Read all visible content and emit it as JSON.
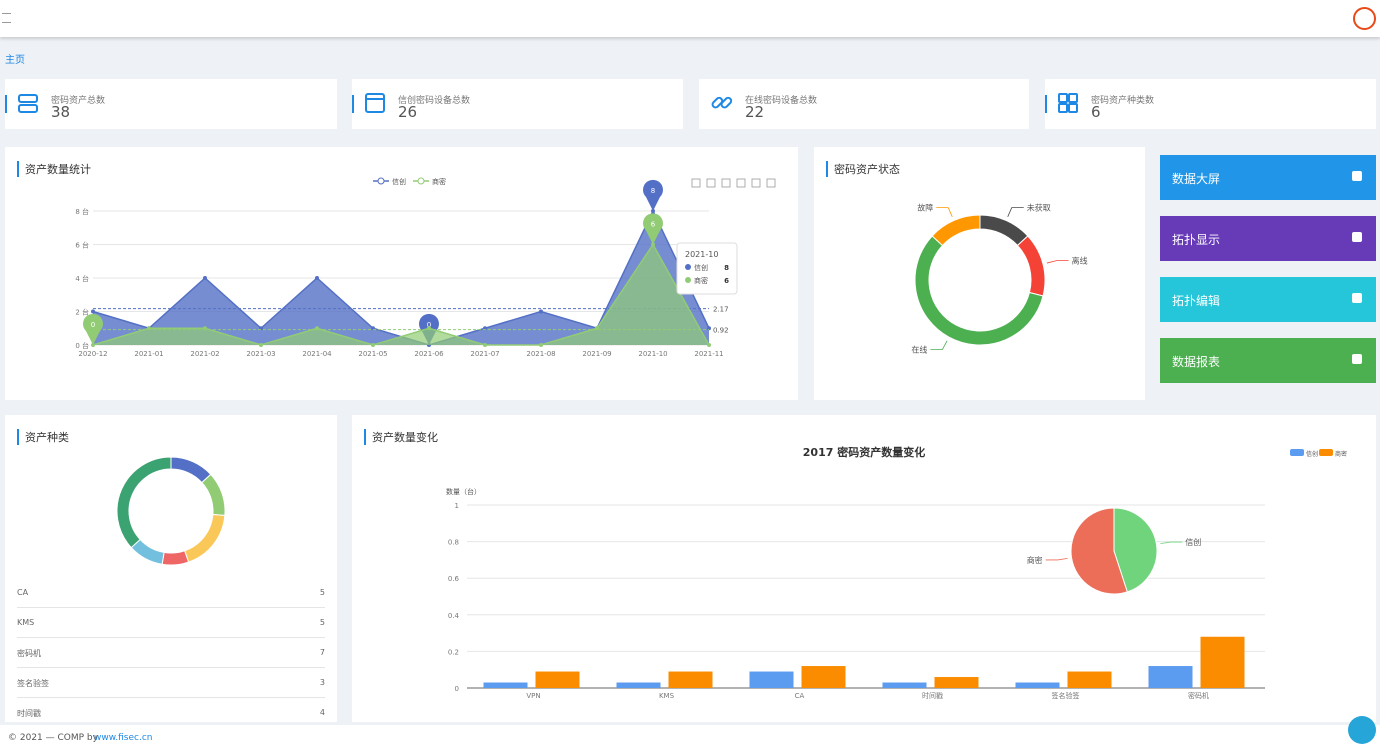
{
  "header": {
    "breadcrumb": "主页"
  },
  "stats": [
    {
      "label": "密码资产总数",
      "value": 38
    },
    {
      "label": "信创密码设备总数",
      "value": 26
    },
    {
      "label": "在线密码设备总数",
      "value": 22
    },
    {
      "label": "密码资产种类数",
      "value": 6
    }
  ],
  "asset_trend": {
    "type": "line",
    "title": "资产数量统计",
    "categories": [
      "2020-12",
      "2021-01",
      "2021-02",
      "2021-03",
      "2021-04",
      "2021-05",
      "2021-06",
      "2021-07",
      "2021-08",
      "2021-09",
      "2021-10",
      "2021-11"
    ],
    "series": [
      {
        "name": "信创",
        "color": "#5470c6",
        "values": [
          2,
          1,
          4,
          1,
          4,
          1,
          0,
          1,
          2,
          1,
          8,
          1
        ]
      },
      {
        "name": "商密",
        "color": "#91cc75",
        "values": [
          0,
          1,
          1,
          0,
          1,
          0,
          1,
          0,
          0,
          1,
          6,
          0
        ]
      }
    ],
    "ylim": [
      0,
      8
    ],
    "yticks": [
      {
        "value": 0,
        "label": "0 台"
      },
      {
        "value": 2,
        "label": "2 台"
      },
      {
        "value": 4,
        "label": "4 台"
      },
      {
        "value": 6,
        "label": "6 台"
      },
      {
        "value": 8,
        "label": "8 台"
      }
    ],
    "grid": true,
    "average_lines": [
      2.17,
      0.92
    ],
    "tooltip": {
      "title": "2021-10",
      "items": [
        {
          "name": "信创",
          "value": 8
        },
        {
          "name": "商密",
          "value": 6
        }
      ]
    }
  },
  "asset_status": {
    "type": "donut",
    "title": "密码资产状态",
    "categories": [
      "未获取",
      "离线",
      "在线",
      "故障"
    ],
    "values": [
      5,
      6,
      22,
      5
    ],
    "colors": [
      "#4a4a4a",
      "#f44336",
      "#4caf50",
      "#ff9800"
    ]
  },
  "quick_links": [
    {
      "label": "数据大屏",
      "color": "#2196e8"
    },
    {
      "label": "拓扑显示",
      "color": "#673ab7"
    },
    {
      "label": "拓扑编辑",
      "color": "#26c6da"
    },
    {
      "label": "数据报表",
      "color": "#4caf50"
    }
  ],
  "asset_kinds": {
    "type": "donut",
    "title": "资产种类",
    "categories": [
      "CA",
      "KMS",
      "密码机",
      "签名验签",
      "时间戳",
      null
    ],
    "values": [
      5,
      5,
      7,
      3,
      4,
      14
    ],
    "colors": [
      "#5470c6",
      "#91cc75",
      "#fac858",
      "#ee6666",
      "#73c0de",
      "#3ba272"
    ]
  },
  "asset_change": {
    "type": "bar",
    "panel_title": "资产数量变化",
    "title": "2017 密码资产数量变化",
    "y_label": "数量（台）",
    "categories": [
      "VPN",
      "KMS",
      "CA",
      "时间戳",
      "签名验签",
      "密码机"
    ],
    "series": [
      {
        "name": "信创",
        "color": "#5b9bf0",
        "values": [
          0.03,
          0.03,
          0.09,
          0.03,
          0.03,
          0.12
        ]
      },
      {
        "name": "商密",
        "color": "#fb8c00",
        "values": [
          0.09,
          0.09,
          0.12,
          0.06,
          0.09,
          0.28
        ]
      }
    ],
    "ylim": [
      0,
      1
    ],
    "yticks": [
      0,
      0.2,
      0.4,
      0.6,
      0.8,
      1
    ],
    "grid": true,
    "pie": {
      "type": "pie",
      "categories": [
        "信创",
        "商密"
      ],
      "values": [
        45,
        55
      ],
      "colors": [
        "#6fd47c",
        "#ec6e58"
      ]
    }
  },
  "footer": {
    "text": "© 2021 — COMP by",
    "link": "www.fisec.cn"
  }
}
